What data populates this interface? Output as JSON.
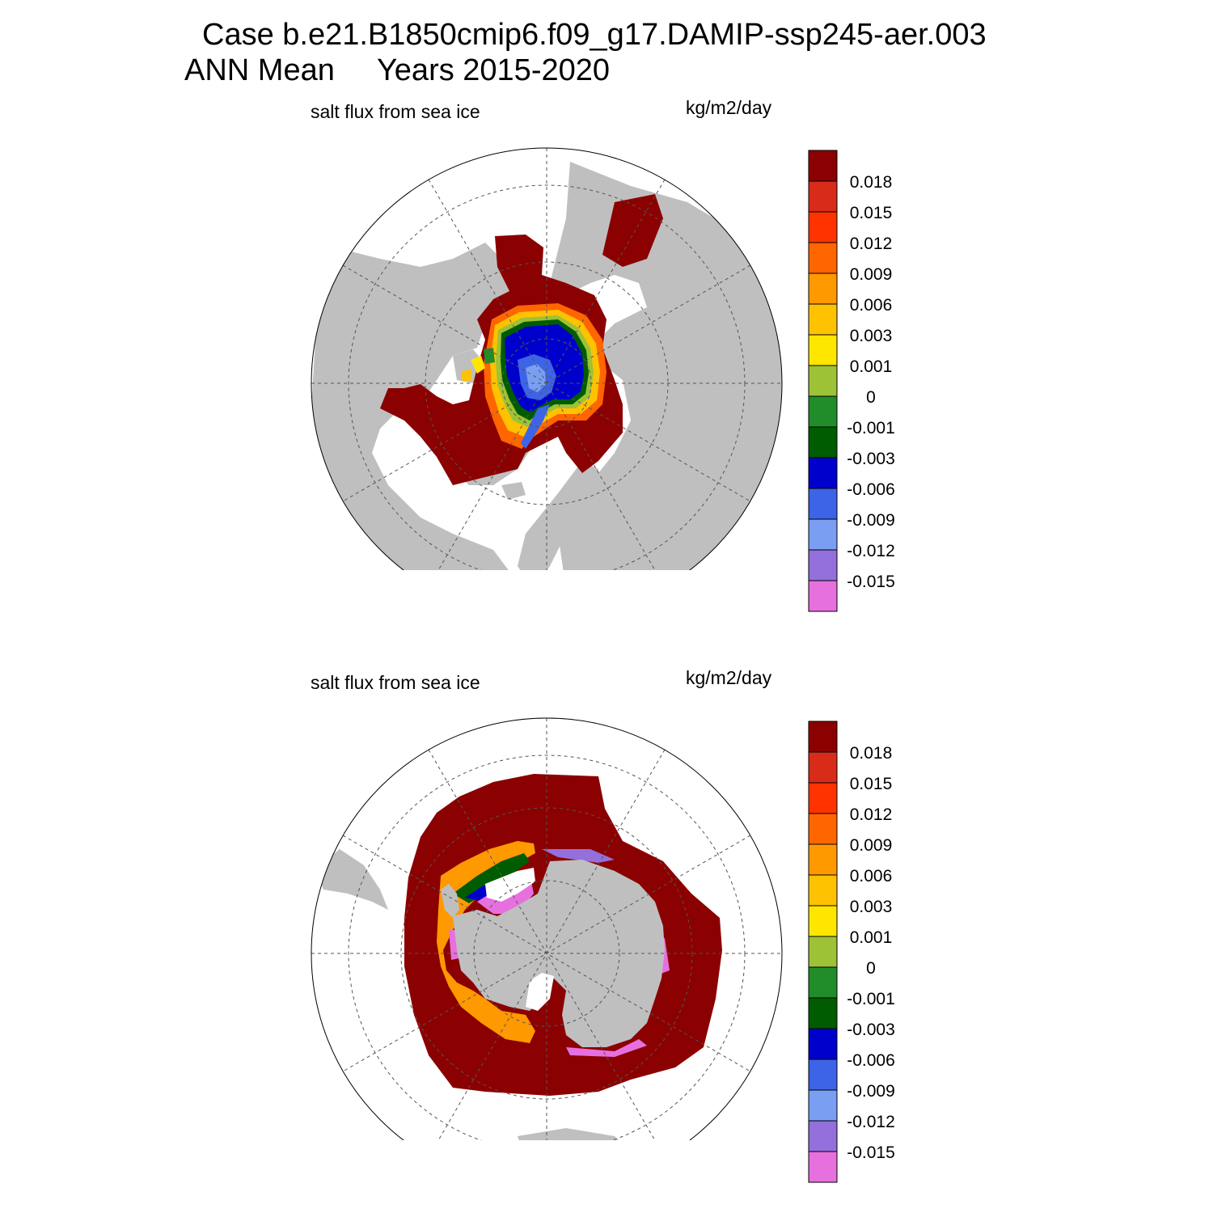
{
  "figure": {
    "title_line1": "Case b.e21.B1850cmip6.f09_g17.DAMIP-ssp245-aer.003",
    "title_line2": "ANN Mean     Years 2015-2020"
  },
  "colors": {
    "land": "#bfbfbf",
    "ocean_no_ice": "#ffffff",
    "graticule": "#555555",
    "border": "#000000"
  },
  "colorbar": {
    "labels": [
      "0.018",
      "0.015",
      "0.012",
      "0.009",
      "0.006",
      "0.003",
      "0.001",
      "0",
      "-0.001",
      "-0.003",
      "-0.006",
      "-0.009",
      "-0.012",
      "-0.015"
    ],
    "colors": [
      "#8b0000",
      "#d92b1a",
      "#ff3300",
      "#ff6600",
      "#ff9900",
      "#ffc200",
      "#ffe600",
      "#9dc236",
      "#218c2a",
      "#005c00",
      "#0000cc",
      "#3d64e6",
      "#7a9ef2",
      "#9370db",
      "#e670de"
    ]
  },
  "panels": [
    {
      "id": "nh",
      "hemisphere": "North Polar Stereographic",
      "label_left": "salt flux from sea ice",
      "label_right": "kg/m2/day"
    },
    {
      "id": "sh",
      "hemisphere": "South Polar Stereographic",
      "label_left": "salt flux from sea ice",
      "label_right": "kg/m2/day"
    }
  ]
}
